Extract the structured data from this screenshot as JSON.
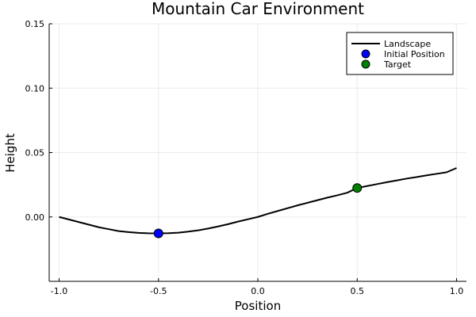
{
  "chart_data": {
    "type": "line",
    "title": "Mountain Car Environment",
    "xlabel": "Position",
    "ylabel": "Height",
    "xlim": [
      -1.05,
      1.05
    ],
    "ylim": [
      -0.05,
      0.15
    ],
    "x_ticks": [
      -1.0,
      -0.5,
      0.0,
      0.5,
      1.0
    ],
    "x_tick_labels": [
      "-1.0",
      "-0.5",
      "0.0",
      "0.5",
      "1.0"
    ],
    "y_ticks": [
      0.0,
      0.05,
      0.1,
      0.15
    ],
    "y_tick_labels": [
      "0.00",
      "0.05",
      "0.10",
      "0.15"
    ],
    "grid": true,
    "legend_position": "top-right",
    "series": [
      {
        "name": "Landscape",
        "kind": "line",
        "color": "#000000",
        "x": [
          -1.0,
          -0.95,
          -0.9,
          -0.85,
          -0.8,
          -0.75,
          -0.7,
          -0.65,
          -0.6,
          -0.55,
          -0.5,
          -0.45,
          -0.4,
          -0.35,
          -0.3,
          -0.25,
          -0.2,
          -0.15,
          -0.1,
          -0.05,
          0.0,
          0.05,
          0.1,
          0.15,
          0.2,
          0.25,
          0.3,
          0.35,
          0.4,
          0.45,
          0.5,
          0.55,
          0.6,
          0.65,
          0.7,
          0.75,
          0.8,
          0.85,
          0.9,
          0.95,
          1.0
        ],
        "y": [
          0.0,
          -0.002,
          -0.004,
          -0.006,
          -0.008,
          -0.0095,
          -0.011,
          -0.0118,
          -0.0124,
          -0.0127,
          -0.0128,
          -0.0126,
          -0.0122,
          -0.0114,
          -0.0104,
          -0.009,
          -0.0074,
          -0.0056,
          -0.0036,
          -0.0018,
          0.0,
          0.0024,
          0.0046,
          0.0068,
          0.009,
          0.011,
          0.013,
          0.015,
          0.0168,
          0.0188,
          0.0225,
          0.024,
          0.0255,
          0.027,
          0.0284,
          0.0298,
          0.031,
          0.0323,
          0.0335,
          0.0347,
          0.038
        ]
      },
      {
        "name": "Initial Position",
        "kind": "scatter",
        "color": "#0000ff",
        "x": [
          -0.5
        ],
        "y": [
          -0.0128
        ]
      },
      {
        "name": "Target",
        "kind": "scatter",
        "color": "#008000",
        "x": [
          0.5
        ],
        "y": [
          0.0225
        ]
      }
    ]
  }
}
